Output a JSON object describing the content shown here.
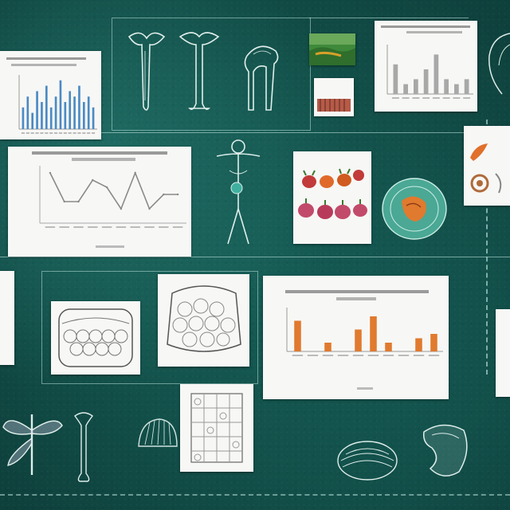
{
  "palette": {
    "board": "#176058",
    "card": "#f7f7f5",
    "sketch_line": "#dfeeea",
    "bar_blue": "#4a8ac4",
    "bar_orange": "#e07a2e",
    "bar_gray": "#a8a8a8",
    "line_chart": "#8a8a8a"
  },
  "icons": [
    "bone-sketch",
    "skull-sketch",
    "anatomy-figure-sketch",
    "shell-sketch",
    "dragonfly-sketch",
    "kidney-organ-sketch",
    "tissue-petri-dish-icon"
  ],
  "chart_data": [
    {
      "type": "bar",
      "title": "",
      "series": [
        {
          "values": [
            4,
            6,
            3,
            7,
            5,
            8,
            4,
            6,
            9,
            5,
            7,
            6,
            8,
            5,
            6,
            4
          ]
        }
      ],
      "ylim": [
        0,
        10
      ],
      "color": "#4a8ac4"
    },
    {
      "type": "line",
      "title": "",
      "series": [
        {
          "values": [
            7,
            3,
            3,
            6,
            5,
            2,
            7,
            2,
            4,
            4
          ]
        }
      ],
      "ylim": [
        0,
        8
      ]
    },
    {
      "type": "bar",
      "title": "",
      "series": [
        {
          "values": [
            6,
            2,
            3,
            5,
            8,
            3,
            2,
            3
          ]
        }
      ],
      "ylim": [
        0,
        10
      ],
      "color": "#a8a8a8"
    },
    {
      "type": "bar",
      "title": "",
      "series": [
        {
          "values": [
            7,
            0,
            2,
            0,
            5,
            8,
            2,
            0,
            3,
            4
          ]
        }
      ],
      "ylim": [
        0,
        10
      ],
      "color": "#e07a2e"
    }
  ]
}
